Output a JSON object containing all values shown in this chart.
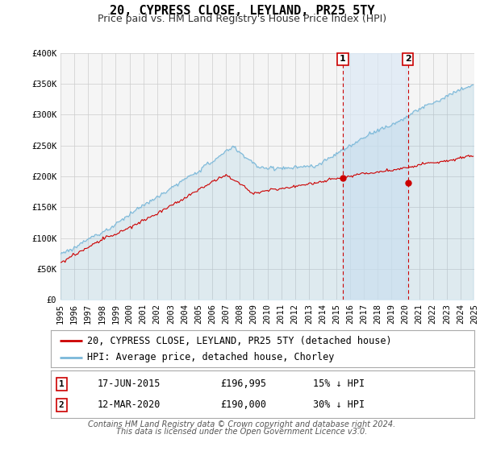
{
  "title": "20, CYPRESS CLOSE, LEYLAND, PR25 5TY",
  "subtitle": "Price paid vs. HM Land Registry's House Price Index (HPI)",
  "hpi_label": "HPI: Average price, detached house, Chorley",
  "property_label": "20, CYPRESS CLOSE, LEYLAND, PR25 5TY (detached house)",
  "footer1": "Contains HM Land Registry data © Crown copyright and database right 2024.",
  "footer2": "This data is licensed under the Open Government Licence v3.0.",
  "annotation1": {
    "label": "1",
    "date": "17-JUN-2015",
    "price": "£196,995",
    "pct": "15% ↓ HPI"
  },
  "annotation2": {
    "label": "2",
    "date": "12-MAR-2020",
    "price": "£190,000",
    "pct": "30% ↓ HPI"
  },
  "point1_x": 2015.46,
  "point1_y": 196995,
  "point2_x": 2020.19,
  "point2_y": 190000,
  "ylim": [
    0,
    400000
  ],
  "xlim_start": 1995,
  "xlim_end": 2025,
  "background_color": "#ffffff",
  "plot_bg_color": "#f5f5f5",
  "hpi_color": "#7ab8d9",
  "property_color": "#cc0000",
  "hpi_fill_alpha": 0.18,
  "grid_color": "#cccccc",
  "annotation_bg": "#dce9f5",
  "vline_color": "#cc0000",
  "title_fontsize": 11,
  "subtitle_fontsize": 9,
  "tick_fontsize": 7.5,
  "legend_fontsize": 8.5,
  "footer_fontsize": 7
}
